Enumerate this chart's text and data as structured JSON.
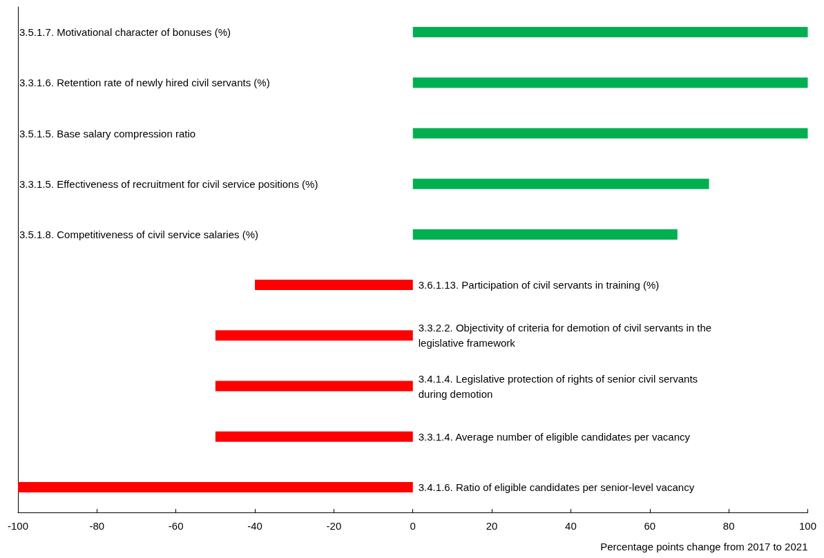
{
  "chart_data": {
    "type": "bar",
    "orientation": "horizontal",
    "xlabel": "Percentage points change from 2017 to 2021",
    "categories": [
      "3.5.1.7. Motivational character of bonuses (%)",
      "3.3.1.6. Retention rate of newly hired civil servants (%)",
      "3.5.1.5. Base salary compression ratio",
      "3.3.1.5. Effectiveness of recruitment for civil service positions (%)",
      "3.5.1.8. Competitiveness of civil service salaries (%)",
      "3.6.1.13. Participation of civil servants in training (%)",
      "3.3.2.2. Objectivity of criteria for demotion of civil servants in the legislative framework",
      "3.4.1.4. Legislative protection of rights of senior civil servants during demotion",
      "3.3.1.4. Average number of eligible candidates per vacancy",
      "3.4.1.6. Ratio of eligible candidates per senior-level vacancy"
    ],
    "values": [
      100,
      100,
      100,
      75,
      67,
      -40,
      -50,
      -50,
      -50,
      -100
    ],
    "colors": [
      "#00b050",
      "#00b050",
      "#00b050",
      "#00b050",
      "#00b050",
      "#ff0000",
      "#ff0000",
      "#ff0000",
      "#ff0000",
      "#ff0000"
    ],
    "xlim": [
      -100,
      100
    ],
    "xticks": [
      -100,
      -80,
      -60,
      -40,
      -20,
      0,
      20,
      40,
      60,
      80,
      100
    ],
    "grid": false
  }
}
